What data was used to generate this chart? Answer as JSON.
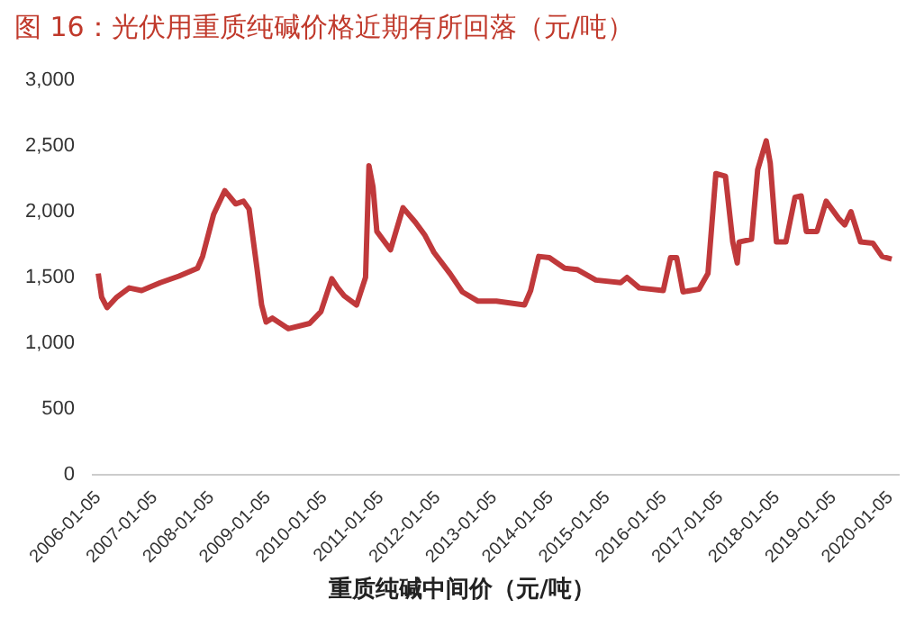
{
  "chart_data": {
    "type": "line",
    "title": "图 16：光伏用重质纯碱价格近期有所回落（元/吨）",
    "xlabel": "重质纯碱中间价（元/吨）",
    "x": [
      "2006-01-05",
      "2006-01-27",
      "2006-03-03",
      "2006-05-05",
      "2006-07-24",
      "2006-10-12",
      "2007-02-10",
      "2007-06-10",
      "2007-10-08",
      "2007-11-10",
      "2008-01-20",
      "2008-04-01",
      "2008-06-10",
      "2008-07-31",
      "2008-09-05",
      "2008-10-27",
      "2008-11-25",
      "2008-12-24",
      "2009-02-03",
      "2009-05-16",
      "2009-10-01",
      "2009-12-13",
      "2010-02-21",
      "2010-04-01",
      "2010-05-12",
      "2010-07-31",
      "2010-09-27",
      "2010-10-19",
      "2010-11-14",
      "2010-12-09",
      "2011-03-07",
      "2011-05-27",
      "2011-08-15",
      "2011-10-16",
      "2011-12-13",
      "2012-03-25",
      "2012-06-13",
      "2012-09-20",
      "2013-01-19",
      "2013-07-19",
      "2013-08-28",
      "2013-10-19",
      "2013-12-27",
      "2014-04-05",
      "2014-06-24",
      "2014-10-23",
      "2015-04-01",
      "2015-05-12",
      "2015-07-31",
      "2016-01-01",
      "2016-02-17",
      "2016-03-28",
      "2016-05-08",
      "2016-08-19",
      "2016-10-16",
      "2016-12-06",
      "2017-02-06",
      "2017-03-25",
      "2017-04-23",
      "2017-05-05",
      "2017-07-24",
      "2017-09-02",
      "2017-10-27",
      "2017-11-22",
      "2018-01-01",
      "2018-03-03",
      "2018-05-01",
      "2018-06-10",
      "2018-07-13",
      "2018-09-20",
      "2018-11-18",
      "2019-02-06",
      "2019-03-18",
      "2019-04-27",
      "2019-06-28",
      "2019-09-16",
      "2019-11-14",
      "2020-01-15"
    ],
    "series": [
      {
        "color": "#c0393b",
        "values": [
          1530,
          1350,
          1270,
          1350,
          1420,
          1400,
          1460,
          1510,
          1570,
          1660,
          1980,
          2160,
          2060,
          2080,
          2020,
          1560,
          1290,
          1160,
          1190,
          1110,
          1150,
          1240,
          1490,
          1420,
          1360,
          1290,
          1500,
          2350,
          2190,
          1850,
          1710,
          2030,
          1920,
          1820,
          1690,
          1530,
          1390,
          1320,
          1320,
          1290,
          1400,
          1660,
          1650,
          1570,
          1560,
          1480,
          1460,
          1500,
          1420,
          1400,
          1650,
          1650,
          1390,
          1410,
          1530,
          2290,
          2270,
          1770,
          1610,
          1770,
          1790,
          2320,
          2540,
          2370,
          1770,
          1770,
          2110,
          2120,
          1850,
          1850,
          2080,
          1950,
          1900,
          2000,
          1770,
          1760,
          1660,
          1640
        ]
      }
    ],
    "xlim": [
      "2005-12-01",
      "2020-03-01"
    ],
    "xticks": [
      "2006-01-05",
      "2007-01-05",
      "2008-01-05",
      "2009-01-05",
      "2010-01-05",
      "2011-01-05",
      "2012-01-05",
      "2013-01-05",
      "2014-01-05",
      "2015-01-05",
      "2016-01-05",
      "2017-01-05",
      "2018-01-05",
      "2019-01-05",
      "2020-01-05"
    ],
    "ylim": [
      0,
      3000
    ],
    "yticks": [
      0,
      {
        "value": 500,
        "label": "500"
      },
      {
        "value": 1000,
        "label": "1,000"
      },
      {
        "value": 1500,
        "label": "1,500"
      },
      {
        "value": 2000,
        "label": "2,000"
      },
      {
        "value": 2500,
        "label": "2,500"
      },
      {
        "value": 3000,
        "label": "3,000"
      }
    ],
    "grid": false,
    "legend": false,
    "marker": "none",
    "line_style": "solid"
  }
}
